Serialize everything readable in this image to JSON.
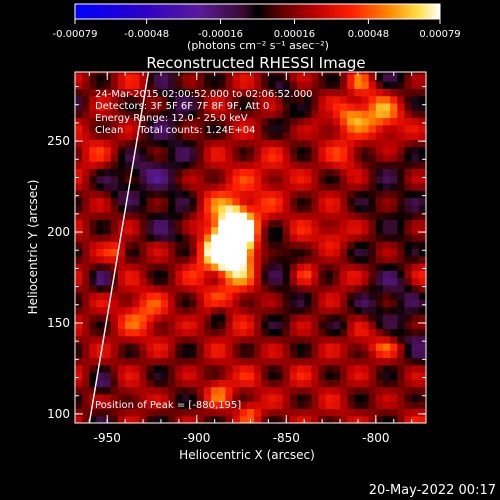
{
  "chart_data": {
    "type": "heatmap",
    "title": "Reconstructed RHESSI Image",
    "xlabel": "Heliocentric X (arcsec)",
    "ylabel": "Heliocentric Y (arcsec)",
    "xlim": [
      -968,
      -772
    ],
    "ylim": [
      95,
      288
    ],
    "x_ticks": [
      -950,
      -900,
      -850,
      -800
    ],
    "y_ticks": [
      100,
      150,
      200,
      250
    ],
    "peak": [
      -880,
      195
    ],
    "peak_value": 0.00079,
    "colorbar": {
      "min": -0.00079,
      "max": 0.00079,
      "ticks": [
        "-0.00079",
        "-0.00048",
        "-0.00016",
        "0.00016",
        "0.00048",
        "0.00079"
      ],
      "unit": "(photons cm⁻² s⁻¹ asec⁻²)"
    },
    "annotations": [
      "24-Mar-2015 02:00:52.000 to 02:06:52.000",
      "Detectors: 3F 5F 6F 7F 8F 9F, Att 0",
      "Energy Range: 12.0 - 25.0 keV",
      "Clean     Total counts: 1.24E+04"
    ],
    "peak_label": "Position of Peak = [-880,195]",
    "limb": {
      "x": [
        -960,
        -927
      ],
      "y": [
        95,
        288
      ]
    }
  },
  "footer": {
    "date": "20-May-2022 00:17"
  }
}
